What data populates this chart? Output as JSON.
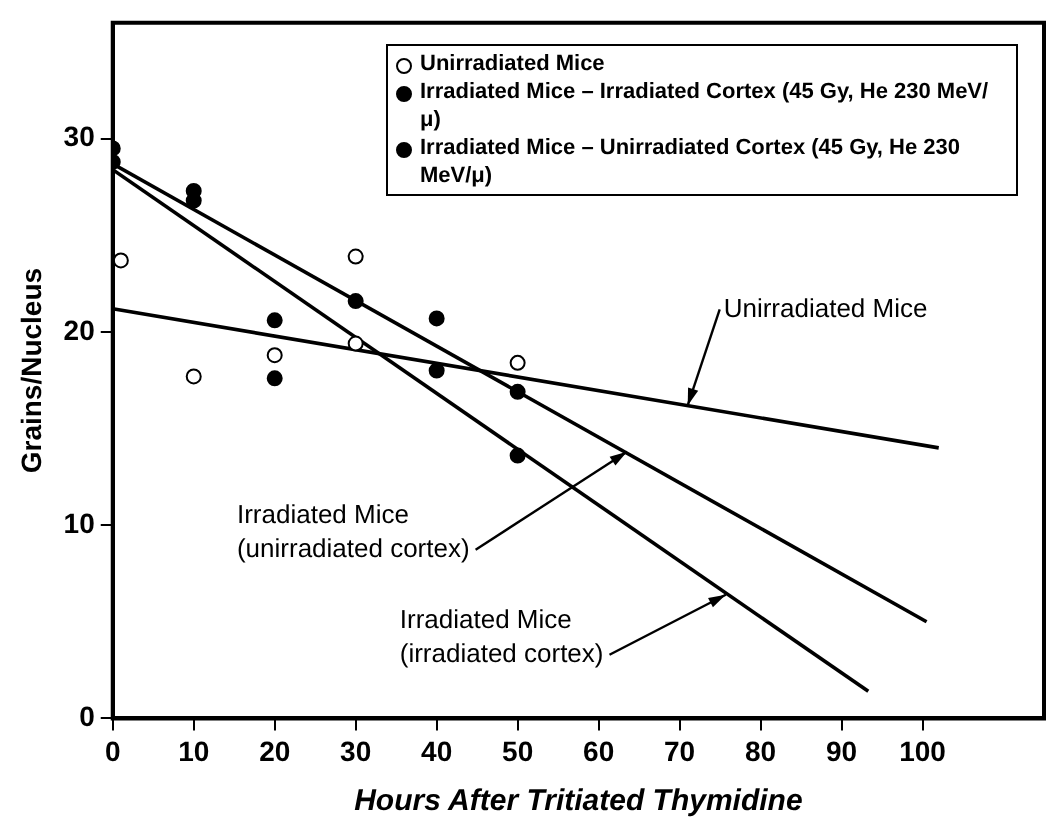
{
  "chart_data": {
    "type": "scatter",
    "xlabel": "Hours After Tritiated Thymidine",
    "ylabel": "Grains/Nucleus",
    "xlim": [
      0,
      115
    ],
    "ylim": [
      0,
      36
    ],
    "xticks": [
      0,
      10,
      20,
      30,
      40,
      50,
      60,
      70,
      80,
      90,
      100
    ],
    "yticks": [
      0,
      10,
      20,
      30
    ],
    "grid": false,
    "legend": "top right",
    "marker": "circle",
    "series": [
      {
        "name": "Unirradiated Mice",
        "color": "#ffffff",
        "x": [
          1,
          10,
          20,
          30,
          30,
          50
        ],
        "values": [
          23.7,
          17.7,
          18.8,
          23.9,
          19.4,
          18.4
        ]
      },
      {
        "name": "Irradiated Mice – Irradiated Cortex (45 Gy, He 230 MeV/μ)",
        "color": "#000000",
        "x": [
          0,
          10,
          20,
          40,
          50
        ],
        "values": [
          28.8,
          26.8,
          17.6,
          18,
          13.6
        ]
      },
      {
        "name": "Irradiated Mice – Unirradiated Cortex (45 Gy, He 230 MeV/μ)",
        "color": "#000000",
        "x": [
          0,
          10,
          20,
          30,
          40,
          50
        ],
        "values": [
          29.5,
          27.3,
          20.6,
          21.6,
          20.7,
          16.9
        ]
      },
      {
        "type": "line",
        "marker": "none",
        "color": "#000000",
        "x": [
          0,
          102
        ],
        "values": [
          21.2,
          14
        ]
      },
      {
        "type": "line",
        "marker": "none",
        "color": "#000000",
        "x": [
          0,
          100.5
        ],
        "values": [
          28.7,
          5
        ]
      },
      {
        "type": "line",
        "marker": "none",
        "color": "#000000",
        "x": [
          0,
          93.3
        ],
        "values": [
          28.4,
          1.4
        ]
      }
    ],
    "annotations": [
      {
        "text": "Unirradiated Mice",
        "x": 71,
        "y": 16.2
      },
      {
        "text": "Irradiated Mice\n(unirradiated cortex)",
        "x": 63.5,
        "y": 13.8
      },
      {
        "text": "Irradiated Mice\n(irradiated cortex)",
        "x": 75.7,
        "y": 6.4
      }
    ]
  }
}
